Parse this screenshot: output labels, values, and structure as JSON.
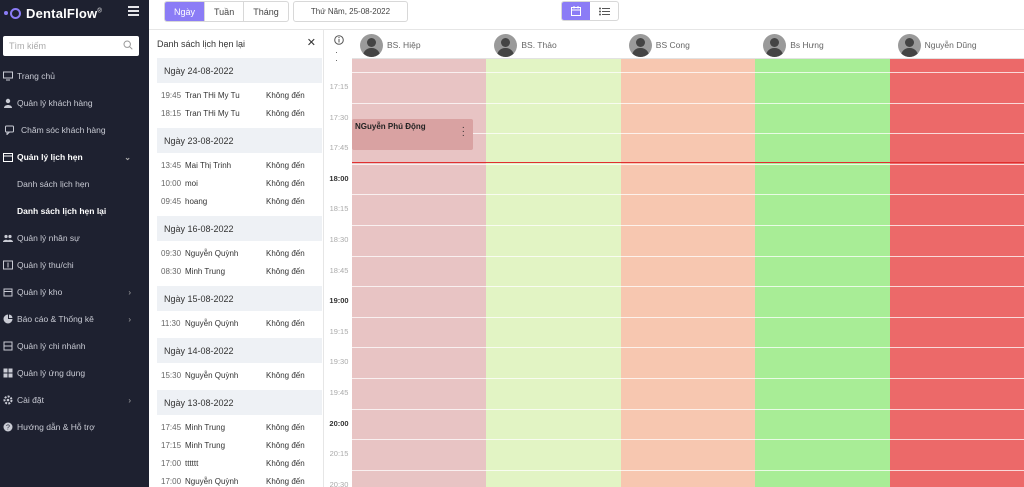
{
  "app": {
    "name": "DentalFlow",
    "trademark": "®"
  },
  "search": {
    "placeholder": "Tìm kiếm"
  },
  "sidebar": {
    "items": [
      {
        "label": "Trang chủ",
        "icon": "monitor-icon"
      },
      {
        "label": "Quản lý khách hàng",
        "icon": "user-icon"
      },
      {
        "label": "Chăm sóc khách hàng",
        "icon": "chat-icon"
      },
      {
        "label": "Quản lý lịch hẹn",
        "icon": "calendar-icon",
        "expanded": true
      },
      {
        "label": "Danh sách lịch hẹn"
      },
      {
        "label": "Danh sách lịch hẹn lại"
      },
      {
        "label": "Quản lý nhân sự",
        "icon": "users-icon"
      },
      {
        "label": "Quản lý thu/chi",
        "icon": "wallet-icon"
      },
      {
        "label": "Quản lý kho",
        "icon": "box-icon"
      },
      {
        "label": "Báo cáo & Thống kê",
        "icon": "pie-chart-icon"
      },
      {
        "label": "Quản lý chi nhánh",
        "icon": "branch-icon"
      },
      {
        "label": "Quản lý ứng dụng",
        "icon": "apps-icon"
      },
      {
        "label": "Cài đặt",
        "icon": "gear-icon"
      },
      {
        "label": "Hướng dẫn & Hỗ trợ",
        "icon": "help-icon"
      }
    ]
  },
  "toolbar": {
    "view_modes": [
      "Ngày",
      "Tuần",
      "Tháng"
    ],
    "selected_mode": "Ngày",
    "date": "Thứ Năm, 25-08-2022"
  },
  "panel": {
    "title": "Danh sách lịch hẹn lại",
    "groups": [
      {
        "date": "Ngày 24-08-2022",
        "rows": [
          {
            "time": "19:45",
            "name": "Tran THi My Tu",
            "status": "Không đến"
          },
          {
            "time": "18:15",
            "name": "Tran THi My Tu",
            "status": "Không đến"
          }
        ]
      },
      {
        "date": "Ngày 23-08-2022",
        "rows": [
          {
            "time": "13:45",
            "name": "Mai Thị Trinh",
            "status": "Không đến"
          },
          {
            "time": "10:00",
            "name": "moi",
            "status": "Không đến"
          },
          {
            "time": "09:45",
            "name": "hoang",
            "status": "Không đến"
          }
        ]
      },
      {
        "date": "Ngày 16-08-2022",
        "rows": [
          {
            "time": "09:30",
            "name": "Nguyễn Quỳnh",
            "status": "Không đến"
          },
          {
            "time": "08:30",
            "name": "Minh Trung",
            "status": "Không đến"
          }
        ]
      },
      {
        "date": "Ngày 15-08-2022",
        "rows": [
          {
            "time": "11:30",
            "name": "Nguyễn Quỳnh",
            "status": "Không đến"
          }
        ]
      },
      {
        "date": "Ngày 14-08-2022",
        "rows": [
          {
            "time": "15:30",
            "name": "Nguyễn Quỳnh",
            "status": "Không đến"
          }
        ]
      },
      {
        "date": "Ngày 13-08-2022",
        "rows": [
          {
            "time": "17:45",
            "name": "Minh Trung",
            "status": "Không đến"
          },
          {
            "time": "17:15",
            "name": "Minh Trung",
            "status": "Không đến"
          },
          {
            "time": "17:00",
            "name": "tttttt",
            "status": "Không đến"
          },
          {
            "time": "17:00",
            "name": "Nguyễn Quỳnh",
            "status": "Không đến"
          }
        ]
      }
    ]
  },
  "calendar": {
    "doctors": [
      {
        "name": "BS. Hiệp",
        "color": "#e8c4c4"
      },
      {
        "name": "BS. Thảo",
        "color": "#e2f4c4"
      },
      {
        "name": "BS Cong",
        "color": "#f7c7b0"
      },
      {
        "name": "Bs Hưng",
        "color": "#a8ed96"
      },
      {
        "name": "Nguyễn Dũng",
        "color": "#ec6969"
      }
    ],
    "time_labels": [
      "17:15",
      "17:30",
      "17:45",
      "18:00",
      "18:15",
      "18:30",
      "18:45",
      "19:00",
      "19:15",
      "19:30",
      "19:45",
      "20:00",
      "20:15",
      "20:30"
    ],
    "bold_labels": [
      "18:00",
      "19:00",
      "20:00"
    ],
    "appointment": {
      "name": "NGuyễn Phú Động",
      "doctor": "BS. Hiệp"
    },
    "now_line_color": "#e03030",
    "accent": "#8b7cf6"
  }
}
